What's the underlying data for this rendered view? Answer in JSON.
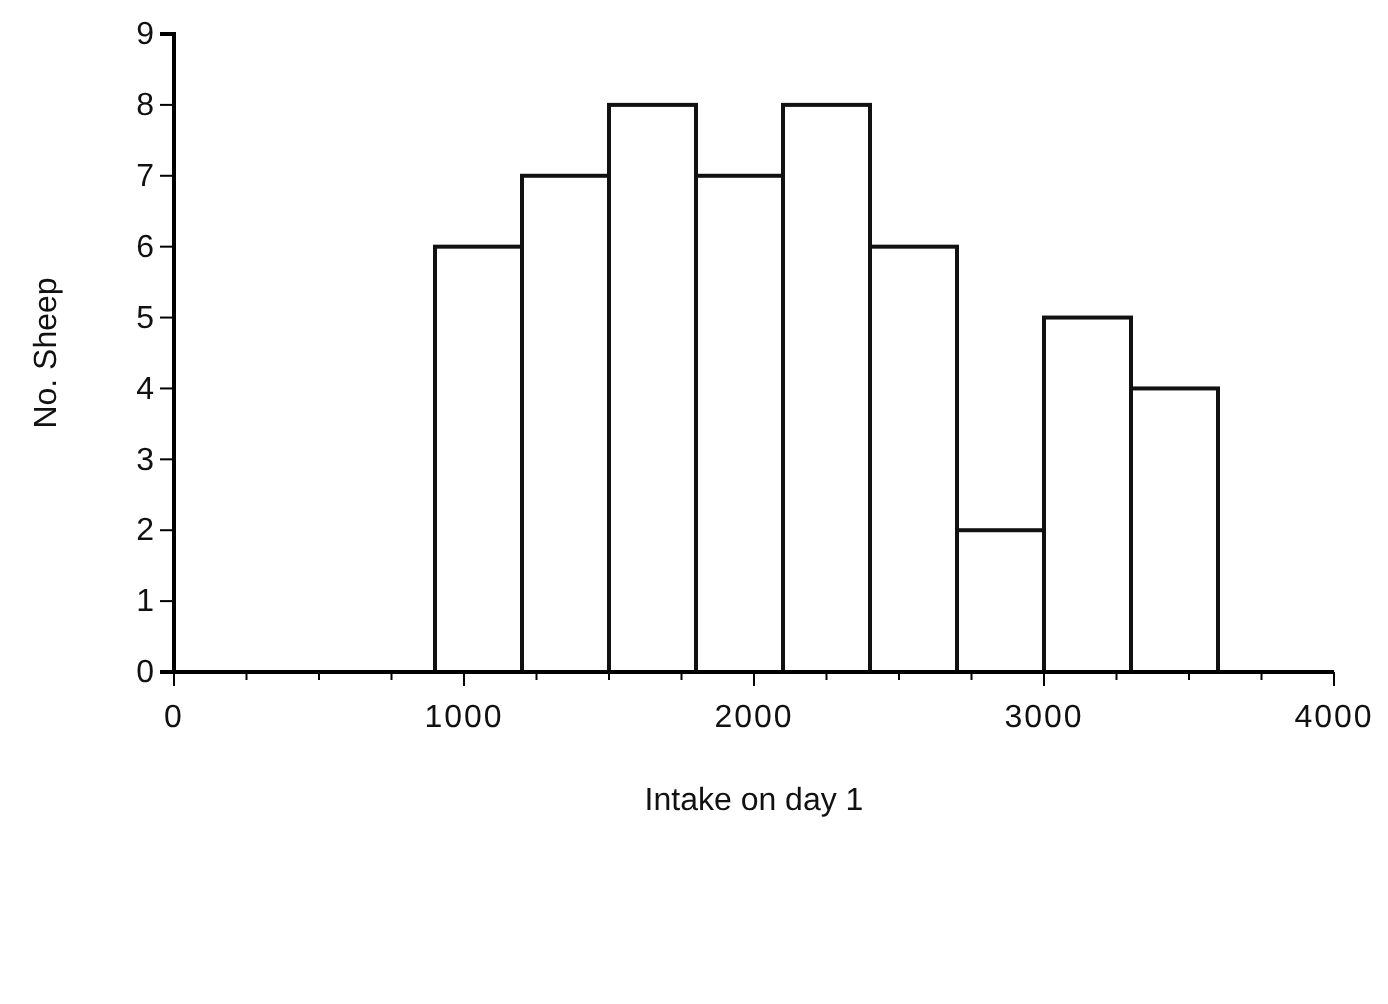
{
  "chart_data": {
    "type": "histogram",
    "xlabel": "Intake on day 1",
    "ylabel": "No. Sheep",
    "bins": [
      0,
      300,
      600,
      900,
      1200,
      1500,
      1800,
      2100,
      2400,
      2700,
      3000,
      3300,
      3600
    ],
    "values": [
      0,
      0,
      0,
      6,
      7,
      8,
      7,
      8,
      6,
      2,
      5,
      4
    ],
    "color": "#ffffff",
    "xlim": [
      0,
      4000
    ],
    "xticks": [
      0,
      {
        "value": 250,
        "label": null
      },
      {
        "value": 500,
        "label": null
      },
      {
        "value": 750,
        "label": null
      },
      1000,
      {
        "value": 1250,
        "label": null
      },
      {
        "value": 1500,
        "label": null
      },
      {
        "value": 1750,
        "label": null
      },
      2000,
      {
        "value": 2250,
        "label": null
      },
      {
        "value": 2500,
        "label": null
      },
      {
        "value": 2750,
        "label": null
      },
      3000,
      {
        "value": 3250,
        "label": null
      },
      {
        "value": 3500,
        "label": null
      },
      {
        "value": 3750,
        "label": null
      },
      4000
    ],
    "ylim": [
      0,
      9
    ],
    "yticks": [
      0,
      1,
      2,
      3,
      4,
      5,
      6,
      7,
      8,
      9
    ]
  }
}
